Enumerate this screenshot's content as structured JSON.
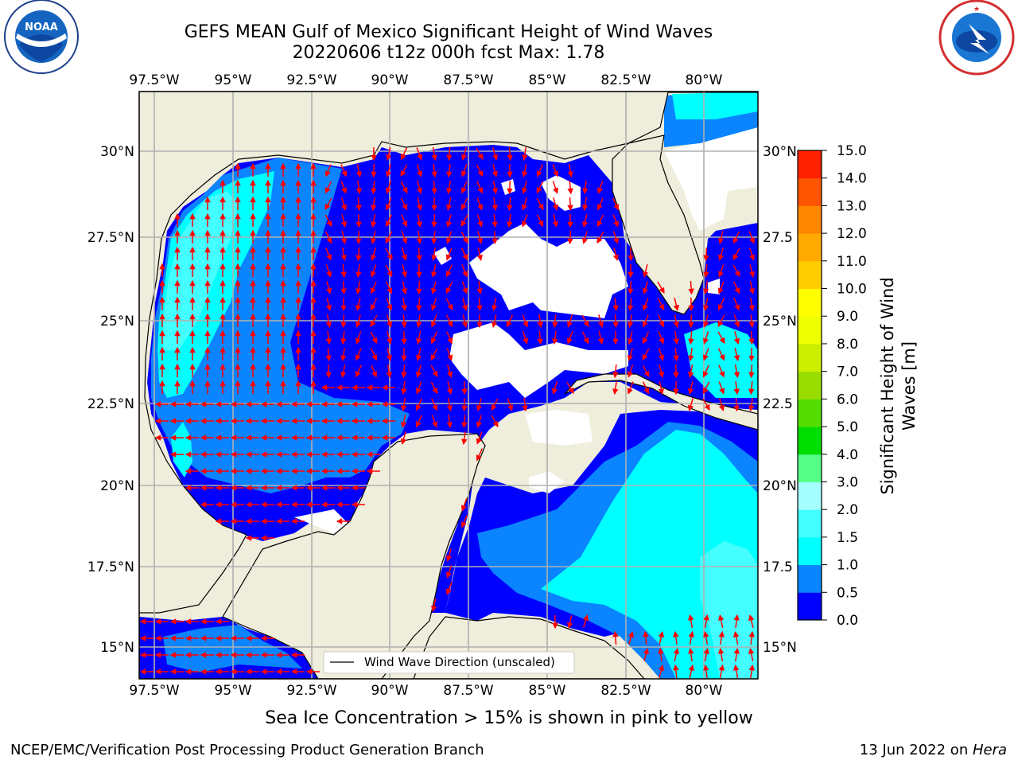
{
  "title": {
    "line1": "GEFS MEAN Gulf of Mexico Significant Height of Wind Waves",
    "line2": "20220606 t12z 000h fcst   Max: 1.78"
  },
  "logos": {
    "left": {
      "name": "noaa-logo",
      "text": "NOAA",
      "ring_text": "NATIONAL OCEANIC AND ATMOSPHERIC ADMINISTRATION · U.S. DEPARTMENT OF COMMERCE"
    },
    "right": {
      "name": "nws-logo",
      "ring_text": "NATIONAL WEATHER SERVICE"
    }
  },
  "axes": {
    "lon_labels": [
      "97.5°W",
      "95°W",
      "92.5°W",
      "90°W",
      "87.5°W",
      "85°W",
      "82.5°W",
      "80°W"
    ],
    "lat_labels_left": [
      "30°N",
      "27.5°N",
      "25°N",
      "22.5°N",
      "20°N",
      "17.5°N",
      "15°N"
    ],
    "lat_labels_right": [
      "30°N",
      "27.5",
      "25°N",
      "22.5",
      "20°N",
      "17.5",
      "15°N"
    ]
  },
  "legend": {
    "label": "Wind Wave Direction (unscaled)"
  },
  "colorbar": {
    "title_line1": "Significant Height of Wind",
    "title_line2": "Waves [m]",
    "ticks": [
      "0.0",
      "0.5",
      "1.0",
      "1.5",
      "2.0",
      "3.0",
      "4.0",
      "5.0",
      "6.0",
      "7.0",
      "8.0",
      "9.0",
      "10.0",
      "11.0",
      "12.0",
      "13.0",
      "14.0",
      "15.0"
    ],
    "colors": [
      "#0000ff",
      "#0a84ff",
      "#00ffff",
      "#44ffff",
      "#a6ffff",
      "#55ff88",
      "#00dd00",
      "#55dd00",
      "#99dd00",
      "#ccee00",
      "#eeff00",
      "#ffff00",
      "#ffcc00",
      "#ffaa00",
      "#ff8800",
      "#ff5500",
      "#ff2200",
      "#ff0000"
    ]
  },
  "map_colors": {
    "land": "#efeddb",
    "ocean_0_0.5": "#0000ff",
    "ocean_0.5_1.0": "#0a84ff",
    "ocean_1.0_1.5": "#00ffff",
    "ocean_1.5_2.0": "#44ffff",
    "arrows": "#ff0000",
    "grid": "#b0b0b0"
  },
  "chart_data": {
    "type": "heatmap",
    "max_value": 1.78,
    "units": "m",
    "lon_range": [
      -98,
      -78
    ],
    "lat_range": [
      14,
      32
    ]
  },
  "notes": {
    "sea_ice": "Sea Ice Concentration > 15% is shown in pink to yellow"
  },
  "footer": {
    "left": "NCEP/EMC/Verification Post Processing Product Generation Branch",
    "right_prefix": "13 Jun 2022 on ",
    "right_host": "Hera"
  }
}
